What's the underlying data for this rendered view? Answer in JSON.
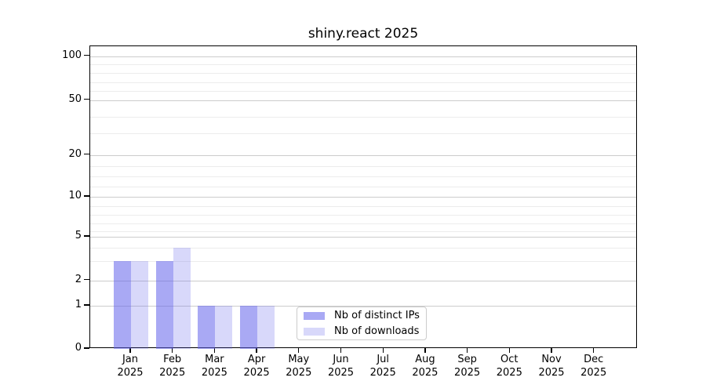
{
  "chart_data": {
    "type": "bar",
    "title": "shiny.react 2025",
    "x_categories": [
      {
        "month": "Jan",
        "year": "2025"
      },
      {
        "month": "Feb",
        "year": "2025"
      },
      {
        "month": "Mar",
        "year": "2025"
      },
      {
        "month": "Apr",
        "year": "2025"
      },
      {
        "month": "May",
        "year": "2025"
      },
      {
        "month": "Jun",
        "year": "2025"
      },
      {
        "month": "Jul",
        "year": "2025"
      },
      {
        "month": "Aug",
        "year": "2025"
      },
      {
        "month": "Sep",
        "year": "2025"
      },
      {
        "month": "Oct",
        "year": "2025"
      },
      {
        "month": "Nov",
        "year": "2025"
      },
      {
        "month": "Dec",
        "year": "2025"
      }
    ],
    "series": [
      {
        "name": "Nb of distinct IPs",
        "color": "rgba(98,98,235,0.55)",
        "base_color_hex": "#6262eb",
        "values": [
          3,
          3,
          1,
          1,
          0,
          0,
          0,
          0,
          0,
          0,
          0,
          0
        ]
      },
      {
        "name": "Nb of downloads",
        "color": "rgba(98,98,235,0.25)",
        "base_color_hex": "#6262eb",
        "values": [
          3,
          4,
          1,
          1,
          0,
          0,
          0,
          0,
          0,
          0,
          0,
          0
        ]
      }
    ],
    "y_axis": {
      "tick_labels": [
        "100",
        "50",
        "20",
        "10",
        "5",
        "2",
        "1",
        "0"
      ],
      "tick_values": [
        100,
        50,
        20,
        10,
        5,
        2,
        1,
        0
      ],
      "scale": "log-like",
      "grid": true
    },
    "legend": {
      "position": "inside-bottom-center",
      "entries": [
        "Nb of distinct IPs",
        "Nb of downloads"
      ]
    }
  }
}
